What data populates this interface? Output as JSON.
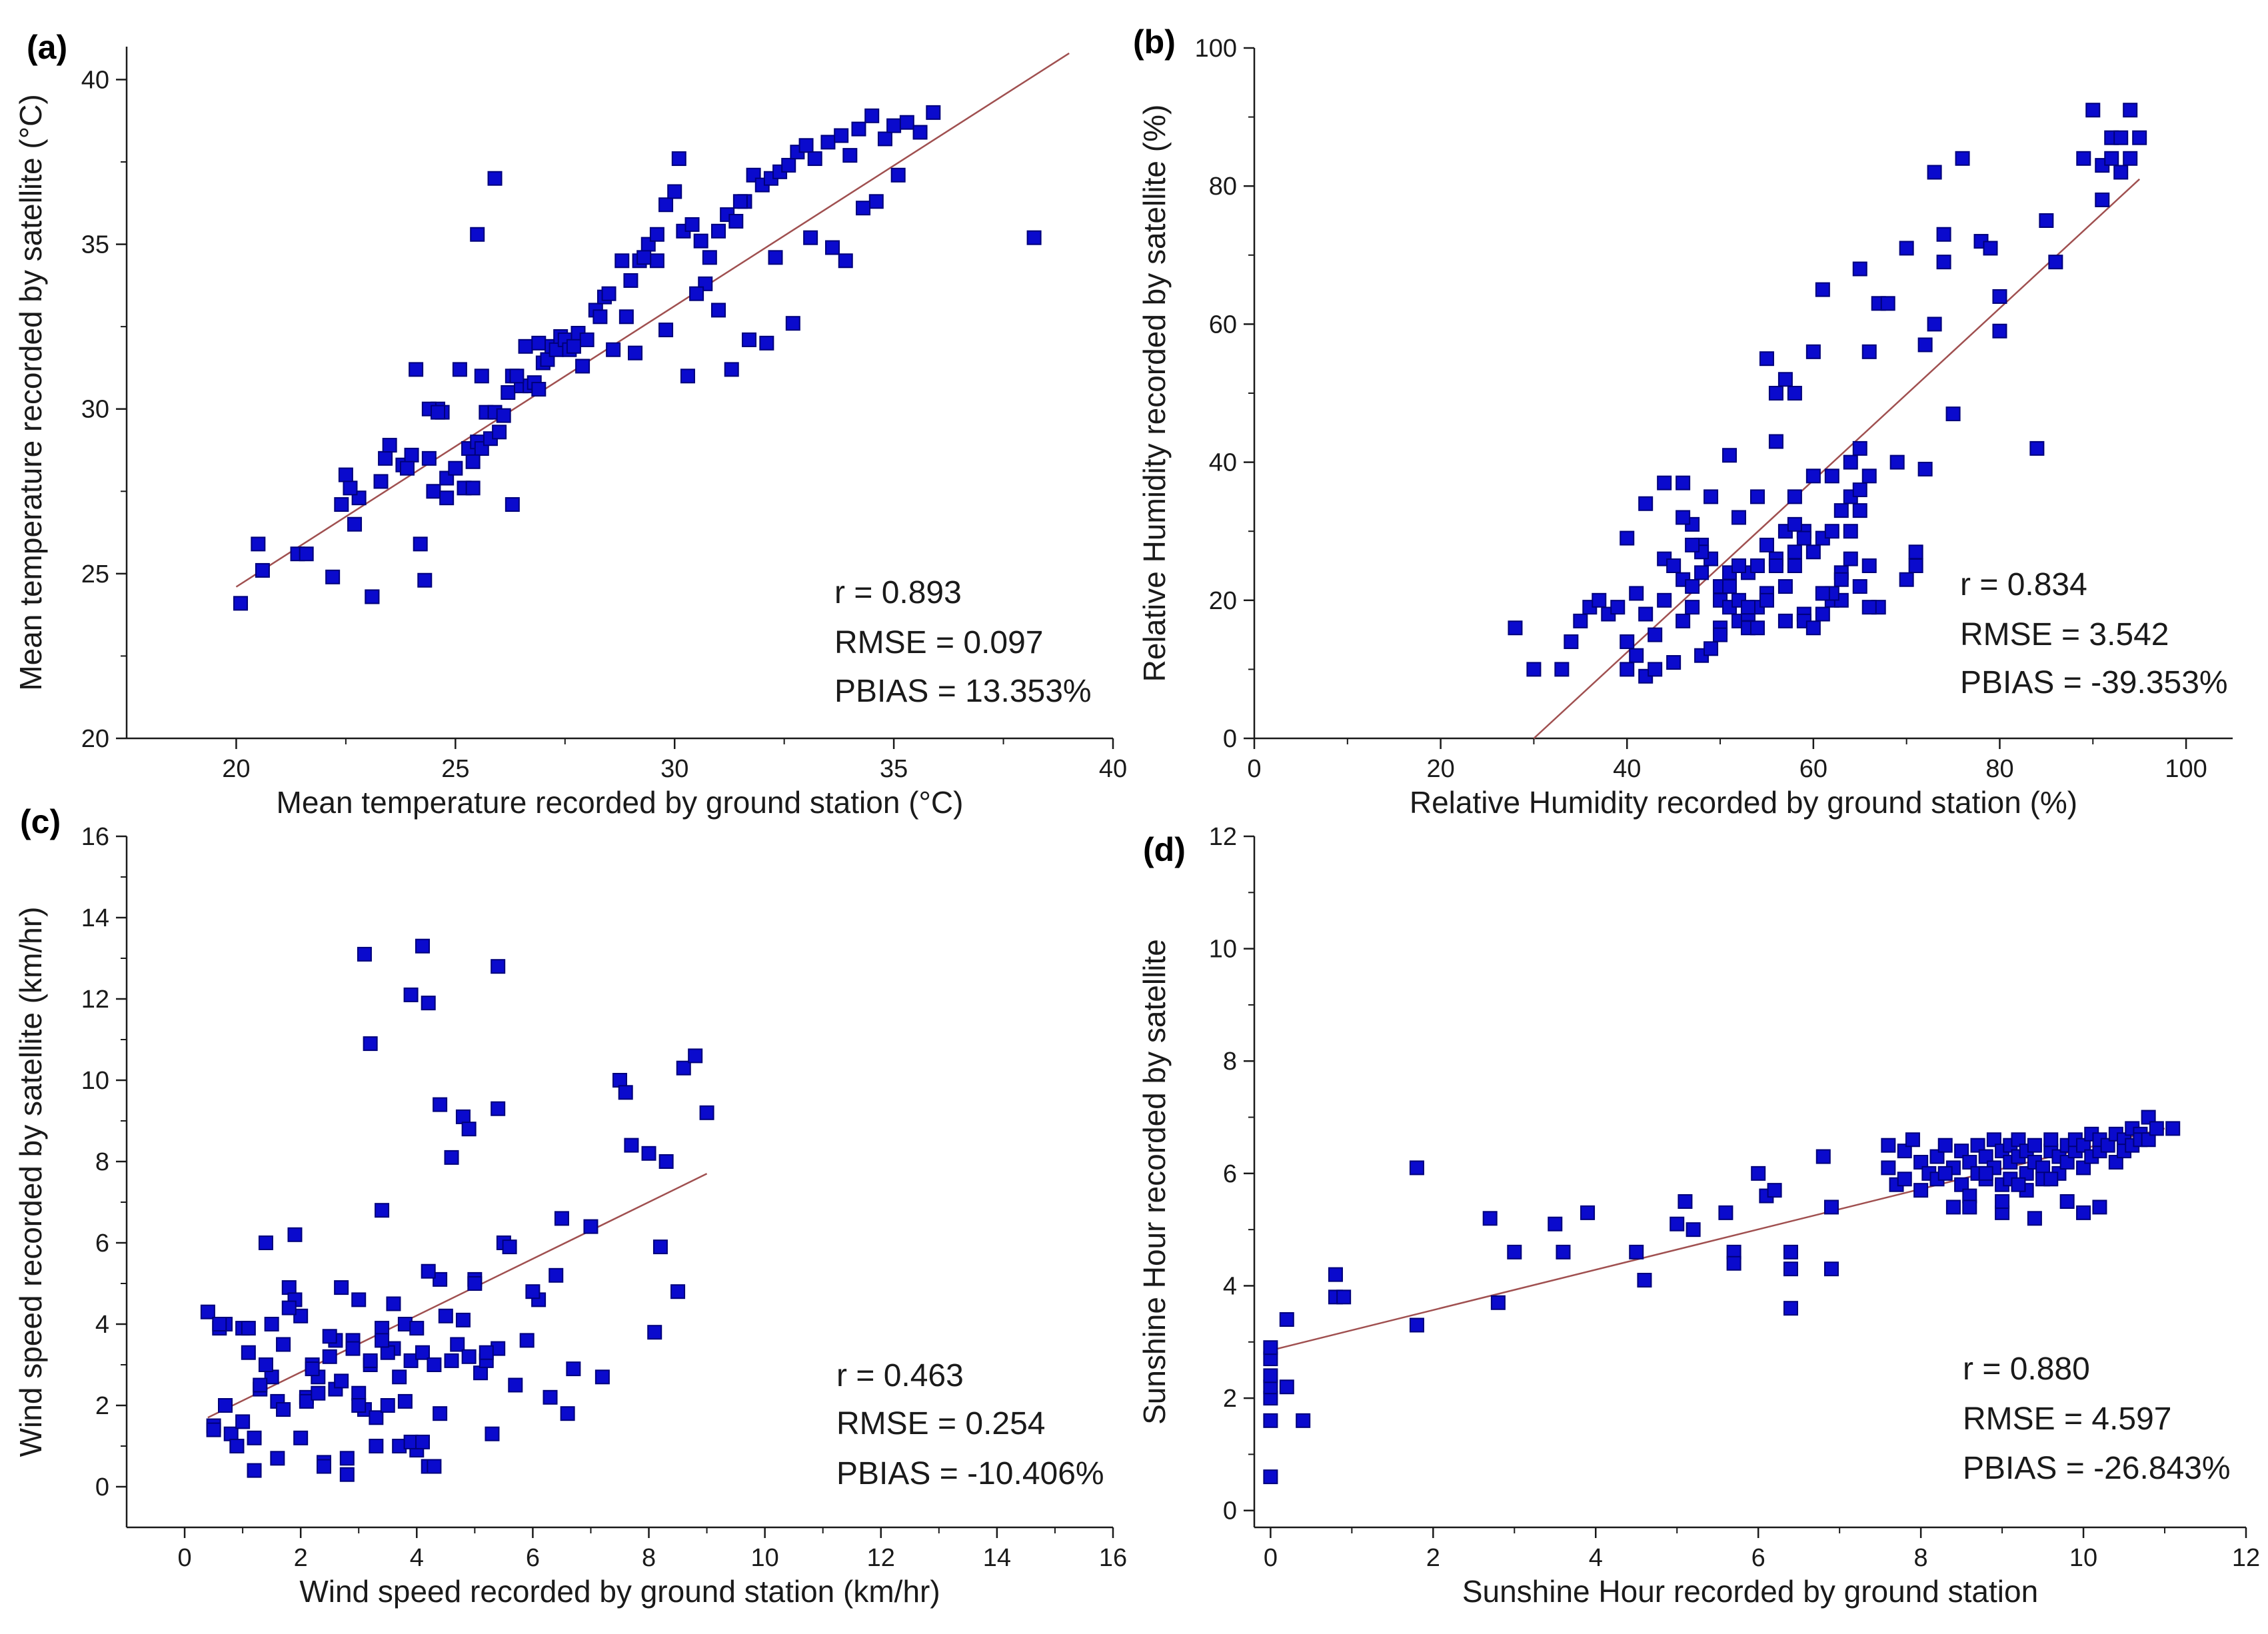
{
  "colors": {
    "marker": "#0a0acd",
    "marker_edge": "#00007a",
    "fit_line": "#a05050",
    "axis": "#1a1a1a"
  },
  "chart_data": [
    {
      "type": "scatter",
      "panel_label": "(a)",
      "xlabel": "Mean temperature recorded by ground station (°C)",
      "ylabel": "Mean temperature recorded by satellite (°C)",
      "xlim": [
        17.5,
        40
      ],
      "ylim": [
        20,
        41
      ],
      "xticks": [
        20,
        25,
        30,
        35,
        40
      ],
      "yticks": [
        20,
        25,
        30,
        35,
        40
      ],
      "stats": [
        "r = 0.893",
        "RMSE = 0.097",
        "PBIAS = 13.353%"
      ],
      "fit_line": {
        "x": [
          20,
          39
        ],
        "y": [
          24.6,
          40.8
        ]
      },
      "x": [
        20.1,
        20.5,
        20.6,
        21.4,
        21.6,
        22.2,
        22.4,
        22.5,
        22.7,
        22.8,
        23.1,
        23.3,
        23.4,
        23.5,
        23.8,
        24.0,
        24.2,
        24.3,
        24.4,
        24.5,
        24.6,
        24.7,
        24.8,
        25.0,
        25.1,
        25.2,
        25.3,
        25.4,
        25.5,
        25.6,
        25.7,
        25.8,
        25.9,
        26.0,
        26.1,
        26.2,
        26.3,
        26.5,
        26.6,
        26.7,
        26.8,
        26.9,
        27.0,
        27.1,
        27.2,
        27.3,
        27.4,
        27.5,
        27.6,
        27.8,
        28.0,
        28.2,
        28.4,
        28.6,
        28.8,
        29.0,
        29.2,
        29.4,
        29.6,
        29.8,
        30.0,
        30.2,
        30.4,
        30.6,
        30.8,
        31.0,
        31.2,
        31.4,
        31.6,
        31.8,
        32.0,
        32.2,
        32.4,
        32.6,
        32.8,
        33.0,
        33.2,
        33.5,
        33.8,
        34.0,
        34.2,
        34.5,
        34.8,
        35.0,
        35.3,
        35.6,
        35.9,
        24.1,
        24.4,
        24.8,
        25.5,
        25.9,
        25.6,
        26.3,
        28.5,
        29.8,
        30.3,
        31.0,
        32.3,
        33.6,
        34.6,
        35.1,
        38.2,
        22.6,
        23.1,
        23.9,
        24.6,
        25.4,
        26.4,
        27.9,
        28.9,
        29.6,
        30.7,
        31.5,
        32.1,
        33.1,
        34.3,
        29.1,
        30.1,
        31.7,
        26.9,
        27.7,
        28.3,
        29.3,
        30.5,
        31.3,
        32.7,
        33.9
      ],
      "y": [
        24.1,
        25.9,
        25.1,
        25.6,
        25.6,
        24.9,
        27.1,
        28.0,
        26.5,
        27.3,
        24.3,
        27.8,
        28.5,
        28.9,
        28.3,
        28.6,
        25.9,
        24.8,
        28.5,
        27.5,
        30.0,
        29.9,
        27.9,
        28.2,
        31.2,
        27.6,
        28.8,
        27.6,
        29.0,
        28.8,
        29.9,
        29.1,
        29.9,
        29.3,
        29.8,
        30.5,
        31.0,
        30.7,
        31.9,
        30.7,
        30.8,
        32.0,
        31.4,
        31.5,
        31.9,
        31.8,
        32.2,
        32.1,
        31.8,
        32.3,
        32.1,
        33.0,
        33.4,
        31.8,
        34.5,
        33.9,
        34.5,
        35.0,
        35.3,
        36.2,
        36.6,
        35.4,
        35.6,
        35.1,
        34.6,
        35.4,
        35.9,
        35.7,
        36.3,
        37.1,
        36.8,
        37.0,
        37.2,
        37.4,
        37.8,
        38.0,
        37.6,
        38.1,
        38.3,
        37.7,
        38.5,
        38.9,
        38.2,
        38.6,
        38.7,
        38.4,
        39.0,
        31.2,
        30.0,
        27.3,
        35.3,
        37.0,
        31.0,
        27.1,
        33.5,
        32.4,
        31.0,
        33.0,
        34.6,
        34.9,
        36.3,
        37.1,
        35.2,
        27.6,
        24.3,
        28.2,
        29.9,
        28.4,
        31.0,
        31.3,
        32.8,
        34.5,
        33.8,
        36.3,
        32.0,
        35.2,
        36.1,
        31.7,
        37.6,
        32.1,
        30.6,
        31.9,
        32.8,
        34.6,
        33.5,
        31.2,
        32.6,
        34.5
      ]
    },
    {
      "type": "scatter",
      "panel_label": "(b)",
      "xlabel": "Relative Humidity recorded by ground station (%)",
      "ylabel": "Relative Humidity recorded by satellite (%)",
      "xlim": [
        0,
        105
      ],
      "ylim": [
        0,
        100
      ],
      "xticks": [
        0,
        20,
        40,
        60,
        80,
        100
      ],
      "yticks": [
        0,
        20,
        40,
        60,
        80,
        100
      ],
      "stats": [
        "r = 0.834",
        "RMSE = 3.542",
        "PBIAS = -39.353%"
      ],
      "fit_line": {
        "x": [
          30,
          95
        ],
        "y": [
          0,
          81
        ]
      },
      "x": [
        28,
        30,
        33,
        34,
        35,
        36,
        37,
        38,
        39,
        40,
        40,
        41,
        41,
        42,
        42,
        43,
        43,
        44,
        44,
        45,
        45,
        46,
        46,
        46,
        47,
        47,
        47,
        48,
        48,
        48,
        49,
        49,
        49,
        50,
        50,
        50,
        51,
        51,
        51,
        52,
        52,
        52,
        53,
        53,
        53,
        54,
        54,
        54,
        55,
        55,
        55,
        56,
        56,
        56,
        57,
        57,
        57,
        58,
        58,
        58,
        59,
        59,
        59,
        60,
        60,
        60,
        61,
        61,
        61,
        62,
        62,
        62,
        63,
        63,
        63,
        64,
        64,
        64,
        65,
        65,
        65,
        66,
        66,
        66,
        67,
        67,
        68,
        69,
        70,
        70,
        71,
        71,
        72,
        72,
        73,
        73,
        74,
        74,
        75,
        76,
        78,
        79,
        80,
        80,
        84,
        85,
        86,
        89,
        90,
        91,
        91,
        92,
        92,
        93,
        93,
        94,
        94,
        95,
        44,
        46,
        48,
        52,
        55,
        57,
        58,
        60,
        62,
        64,
        65,
        66,
        50,
        53,
        56,
        59,
        61,
        63,
        65,
        40,
        42,
        47,
        51,
        54,
        58
      ],
      "y": [
        16,
        10,
        10,
        14,
        17,
        19,
        20,
        18,
        19,
        10,
        14,
        21,
        12,
        9,
        18,
        15,
        10,
        20,
        26,
        11,
        25,
        17,
        37,
        23,
        22,
        19,
        31,
        28,
        12,
        24,
        13,
        26,
        35,
        22,
        20,
        16,
        19,
        24,
        41,
        20,
        32,
        17,
        18,
        24,
        16,
        19,
        35,
        25,
        55,
        28,
        21,
        50,
        43,
        26,
        52,
        30,
        17,
        50,
        35,
        25,
        18,
        30,
        17,
        56,
        38,
        16,
        29,
        18,
        65,
        30,
        20,
        38,
        33,
        24,
        20,
        40,
        26,
        35,
        42,
        68,
        22,
        56,
        38,
        25,
        63,
        19,
        63,
        40,
        23,
        71,
        27,
        25,
        57,
        39,
        60,
        82,
        69,
        73,
        47,
        84,
        72,
        71,
        59,
        64,
        42,
        75,
        69,
        84,
        91,
        78,
        83,
        84,
        87,
        82,
        87,
        84,
        91,
        87,
        37,
        32,
        27,
        25,
        20,
        22,
        31,
        27,
        21,
        30,
        33,
        19,
        15,
        19,
        25,
        29,
        21,
        23,
        36,
        29,
        34,
        28,
        22,
        16,
        27
      ]
    },
    {
      "type": "scatter",
      "panel_label": "(c)",
      "xlabel": "Wind speed recorded by ground station (km/hr)",
      "ylabel": "Wind speed recorded by satellite (km/hr)",
      "xlim": [
        -1,
        16
      ],
      "ylim": [
        -1,
        16
      ],
      "xticks": [
        0,
        2,
        4,
        6,
        8,
        10,
        12,
        14,
        16
      ],
      "yticks": [
        0,
        2,
        4,
        6,
        8,
        10,
        12,
        14,
        16
      ],
      "stats": [
        "r = 0.463",
        "RMSE = 0.254",
        "PBIAS = -10.406%"
      ],
      "fit_line": {
        "x": [
          0.4,
          9.0
        ],
        "y": [
          1.7,
          7.7
        ]
      },
      "x": [
        0.4,
        0.5,
        0.6,
        0.7,
        0.8,
        0.9,
        1.0,
        1.1,
        1.2,
        1.3,
        1.4,
        1.5,
        1.6,
        1.7,
        1.8,
        1.9,
        2.0,
        2.1,
        2.2,
        2.3,
        2.4,
        2.5,
        2.6,
        2.7,
        2.8,
        2.9,
        3.0,
        3.1,
        3.2,
        3.3,
        3.4,
        3.5,
        3.6,
        3.7,
        3.8,
        3.9,
        4.0,
        4.1,
        4.2,
        4.3,
        4.4,
        4.5,
        4.6,
        4.7,
        4.8,
        4.9,
        5.0,
        5.1,
        5.2,
        5.3,
        5.4,
        5.5,
        5.7,
        5.9,
        6.1,
        6.3,
        6.5,
        6.7,
        7.0,
        7.2,
        7.5,
        7.7,
        8.0,
        8.1,
        8.3,
        8.5,
        8.6,
        8.8,
        9.0,
        3.1,
        3.2,
        3.4,
        3.9,
        4.1,
        4.2,
        4.4,
        4.8,
        5.4,
        5.4,
        1.4,
        1.9,
        2.6,
        3.0,
        3.6,
        4.2,
        4.6,
        5.0,
        6.4,
        7.6,
        0.5,
        0.9,
        1.2,
        1.6,
        2.0,
        2.4,
        2.8,
        3.3,
        3.7,
        4.0,
        0.7,
        1.1,
        1.5,
        1.8,
        2.2,
        2.5,
        2.9,
        3.2,
        3.5,
        3.8,
        4.3,
        0.6,
        1.0,
        1.3,
        1.7,
        2.1,
        2.3,
        2.7,
        3.0,
        3.4,
        3.9,
        4.1,
        4.4,
        4.9,
        5.2,
        5.6,
        6.0,
        6.6,
        8.2
      ],
      "y": [
        4.3,
        1.5,
        3.9,
        2.0,
        1.3,
        1.0,
        3.9,
        3.3,
        1.2,
        2.4,
        6.0,
        2.7,
        2.1,
        3.5,
        4.9,
        4.6,
        4.2,
        2.2,
        3.0,
        2.7,
        0.6,
        3.2,
        2.4,
        4.9,
        0.7,
        3.6,
        2.3,
        1.9,
        3.0,
        1.7,
        3.9,
        2.0,
        3.4,
        2.7,
        4.0,
        3.1,
        3.9,
        3.3,
        0.5,
        3.0,
        5.1,
        4.2,
        3.1,
        3.5,
        4.1,
        3.2,
        5.1,
        2.8,
        3.1,
        1.3,
        3.4,
        6.0,
        2.5,
        3.6,
        4.6,
        2.2,
        6.6,
        2.9,
        6.4,
        2.7,
        10.0,
        8.4,
        8.2,
        3.8,
        8.0,
        4.8,
        10.3,
        10.6,
        9.2,
        13.1,
        10.9,
        6.8,
        12.1,
        13.3,
        11.9,
        9.4,
        9.1,
        12.8,
        9.3,
        3.0,
        6.2,
        3.6,
        4.6,
        4.5,
        5.3,
        8.1,
        5.0,
        5.2,
        9.7,
        1.4,
        1.0,
        0.4,
        0.7,
        1.2,
        0.5,
        0.3,
        1.0,
        1.0,
        0.9,
        4.0,
        3.9,
        4.0,
        4.4,
        2.9,
        3.7,
        3.4,
        3.1,
        3.3,
        2.1,
        0.5,
        4.0,
        1.6,
        2.5,
        1.9,
        2.1,
        2.3,
        2.6,
        2.0,
        3.6,
        1.1,
        1.1,
        1.8,
        8.8,
        3.3,
        5.9,
        4.8,
        1.8,
        5.9
      ]
    },
    {
      "type": "scatter",
      "panel_label": "(d)",
      "xlabel": "Sunshine Hour recorded by ground station",
      "ylabel": "Sunshine Hour recorded by satellite",
      "xlim": [
        -0.2,
        12
      ],
      "ylim": [
        -0.3,
        12
      ],
      "xticks": [
        0,
        2,
        4,
        6,
        8,
        10,
        12
      ],
      "yticks": [
        0,
        2,
        4,
        6,
        8,
        10,
        12
      ],
      "stats": [
        "r = 0.880",
        "RMSE = 4.597",
        "PBIAS = -26.843%"
      ],
      "fit_line": {
        "x": [
          0,
          11
        ],
        "y": [
          2.85,
          6.8
        ]
      },
      "x": [
        0,
        0,
        0,
        0,
        0,
        0,
        0,
        0.2,
        0.2,
        0.4,
        0.8,
        0.8,
        0.9,
        1.8,
        1.8,
        2.7,
        2.8,
        3.0,
        3.5,
        3.6,
        3.9,
        4.5,
        4.6,
        5.0,
        5.1,
        5.2,
        5.6,
        5.7,
        5.7,
        6.0,
        6.1,
        6.2,
        6.4,
        6.4,
        6.4,
        6.8,
        6.9,
        6.9,
        7.6,
        7.6,
        7.7,
        7.8,
        7.8,
        7.9,
        8.0,
        8.0,
        8.1,
        8.2,
        8.2,
        8.3,
        8.4,
        8.4,
        8.5,
        8.5,
        8.6,
        8.6,
        8.7,
        8.7,
        8.8,
        8.8,
        8.9,
        8.9,
        9.0,
        9.0,
        9.0,
        9.1,
        9.1,
        9.1,
        9.2,
        9.2,
        9.3,
        9.3,
        9.3,
        9.4,
        9.4,
        9.5,
        9.5,
        9.6,
        9.6,
        9.7,
        9.7,
        9.8,
        9.8,
        9.9,
        9.9,
        10.0,
        10.0,
        10.1,
        10.1,
        10.2,
        10.2,
        10.3,
        10.4,
        10.4,
        10.5,
        10.5,
        10.6,
        10.6,
        10.7,
        10.7,
        10.8,
        10.8,
        10.9,
        11.1,
        8.3,
        8.6,
        9.0,
        9.4,
        9.8,
        10.2,
        8.8,
        9.2,
        9.6,
        10.0
      ],
      "y": [
        0.6,
        1.6,
        2.0,
        2.2,
        2.4,
        2.7,
        2.9,
        2.2,
        3.4,
        1.6,
        3.8,
        4.2,
        3.8,
        6.1,
        3.3,
        5.2,
        3.7,
        4.6,
        5.1,
        4.6,
        5.3,
        4.6,
        4.1,
        5.1,
        5.5,
        5.0,
        5.3,
        4.6,
        4.4,
        6.0,
        5.6,
        5.7,
        4.6,
        4.3,
        3.6,
        6.3,
        5.4,
        4.3,
        6.5,
        6.1,
        5.8,
        6.4,
        5.9,
        6.6,
        6.2,
        5.7,
        6.0,
        6.3,
        5.9,
        6.5,
        5.4,
        6.1,
        6.4,
        5.8,
        6.2,
        5.6,
        6.5,
        6.0,
        6.3,
        5.9,
        6.6,
        6.1,
        6.4,
        5.8,
        5.3,
        6.2,
        6.5,
        5.9,
        6.3,
        6.6,
        6.0,
        6.4,
        5.7,
        6.2,
        6.5,
        6.1,
        5.9,
        6.4,
        6.6,
        6.0,
        6.3,
        6.5,
        6.2,
        6.4,
        6.6,
        6.1,
        6.5,
        6.3,
        6.7,
        6.4,
        6.6,
        6.5,
        6.2,
        6.7,
        6.6,
        6.4,
        6.8,
        6.5,
        6.7,
        6.6,
        7.0,
        6.6,
        6.8,
        6.8,
        6.0,
        5.4,
        5.5,
        5.2,
        5.5,
        5.4,
        6.0,
        5.8,
        5.9,
        5.3
      ]
    }
  ]
}
